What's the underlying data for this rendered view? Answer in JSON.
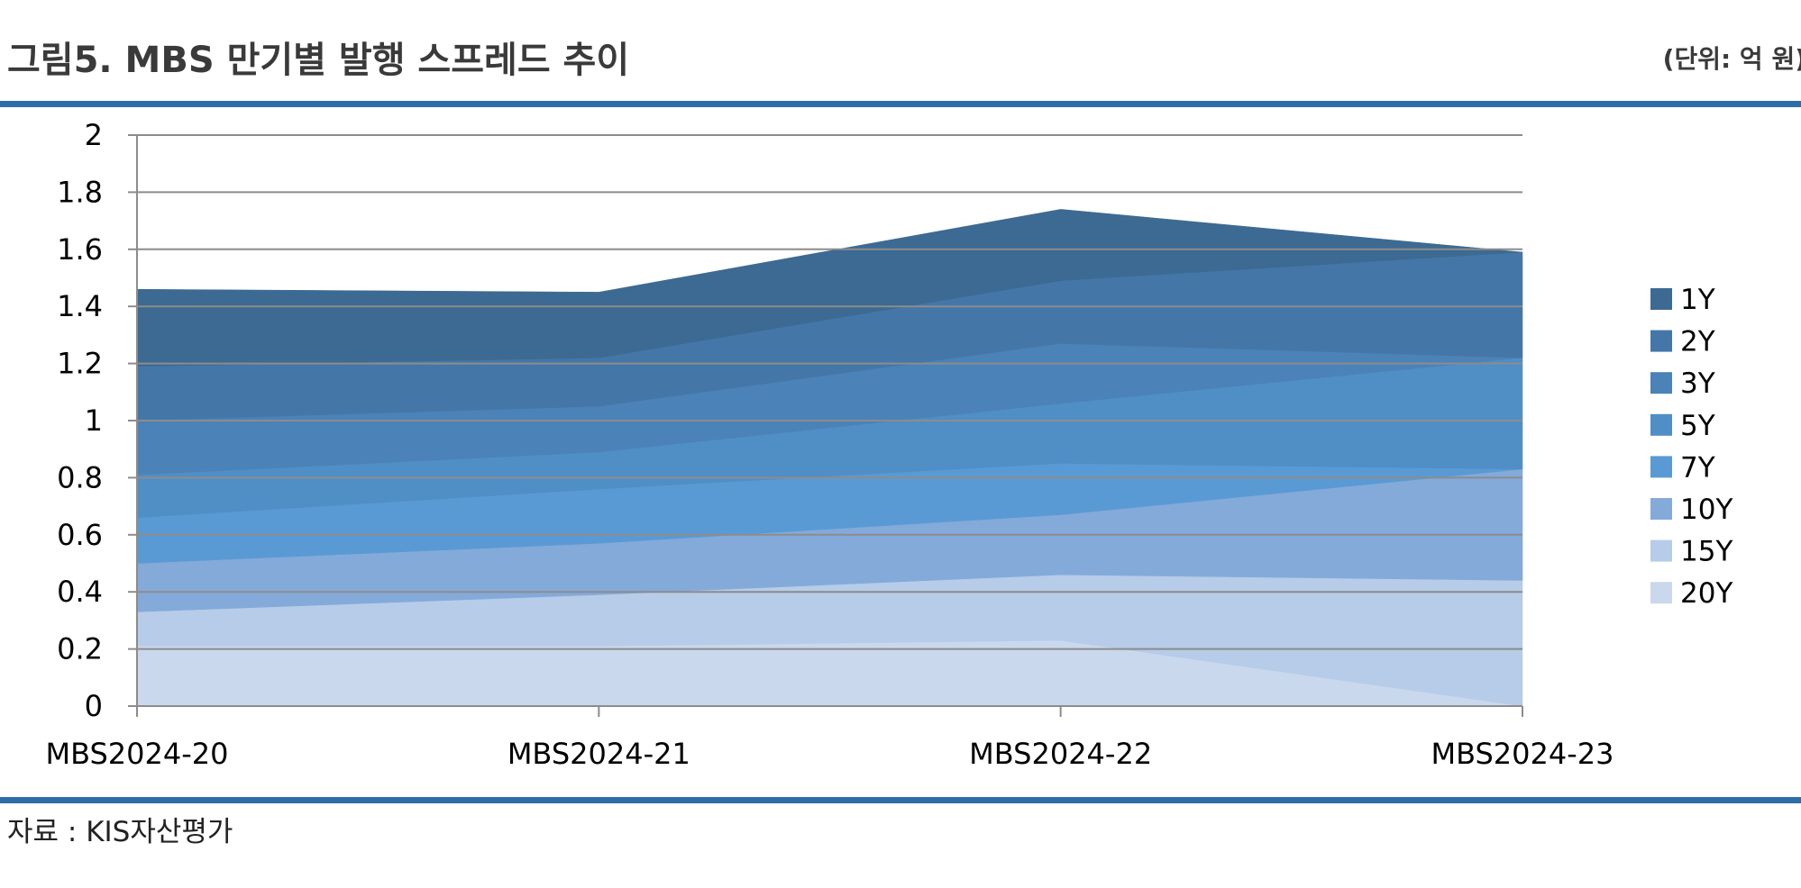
{
  "header": {
    "title": "그림5. MBS 만기별 발행 스프레드 추이",
    "unit": "(단위: 억 원)"
  },
  "footer": {
    "source": "자료 : KIS자산평가"
  },
  "colors": {
    "rule": "#2e6ea6",
    "grid": "#8c8c8c",
    "axis": "#8c8c8c"
  },
  "chart_data": {
    "type": "area",
    "stacked": true,
    "categories": [
      "MBS2024-20",
      "MBS2024-21",
      "MBS2024-22",
      "MBS2024-23"
    ],
    "ylim": [
      0,
      2
    ],
    "yticks": [
      "0",
      "0.2",
      "0.4",
      "0.6",
      "0.8",
      "1",
      "1.2",
      "1.4",
      "1.6",
      "1.8",
      "2"
    ],
    "grid": true,
    "legend_position": "right",
    "series": [
      {
        "name": "20Y",
        "color": "#c9d8ed",
        "values": [
          0.21,
          0.21,
          0.23,
          0.0
        ]
      },
      {
        "name": "15Y",
        "color": "#b6cce8",
        "values": [
          0.12,
          0.18,
          0.23,
          0.44
        ]
      },
      {
        "name": "10Y",
        "color": "#84aada",
        "values": [
          0.17,
          0.18,
          0.21,
          0.39
        ]
      },
      {
        "name": "7Y",
        "color": "#5a9ad4",
        "values": [
          0.16,
          0.19,
          0.18,
          0.0
        ]
      },
      {
        "name": "5Y",
        "color": "#508ec6",
        "values": [
          0.15,
          0.13,
          0.21,
          0.39
        ]
      },
      {
        "name": "3Y",
        "color": "#4b82b8",
        "values": [
          0.19,
          0.16,
          0.21,
          0.0
        ]
      },
      {
        "name": "2Y",
        "color": "#4477a8",
        "values": [
          0.19,
          0.17,
          0.22,
          0.37
        ]
      },
      {
        "name": "1Y",
        "color": "#3c6a92",
        "values": [
          0.27,
          0.23,
          0.25,
          0.0
        ]
      }
    ],
    "legend_order": [
      "1Y",
      "2Y",
      "3Y",
      "5Y",
      "7Y",
      "10Y",
      "15Y",
      "20Y"
    ]
  }
}
